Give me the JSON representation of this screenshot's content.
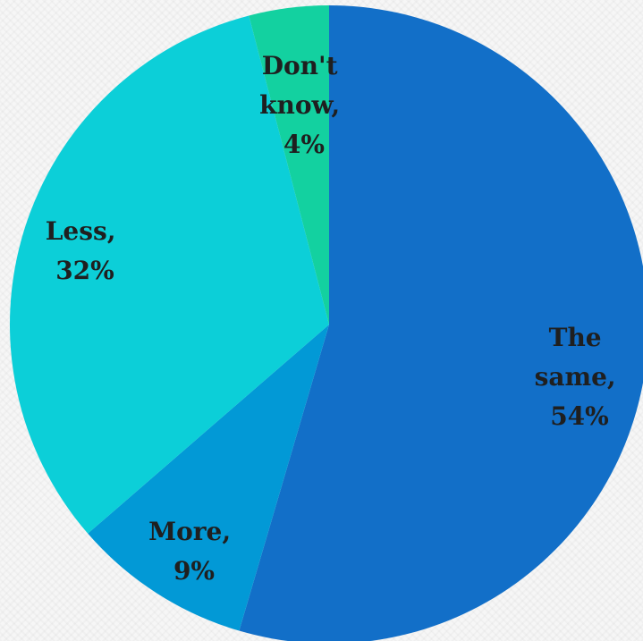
{
  "chart_data": {
    "type": "pie",
    "start_angle_deg": 0,
    "direction": "clockwise",
    "slices": [
      {
        "label_lines": [
          "The",
          "same,",
          "54%"
        ],
        "value": 54,
        "color": "#126fc8"
      },
      {
        "label_lines": [
          "More,",
          "9%"
        ],
        "value": 9,
        "color": "#0299d6"
      },
      {
        "label_lines": [
          "Less,",
          "32%"
        ],
        "value": 32,
        "color": "#0ccfd8"
      },
      {
        "label_lines": [
          "Don't",
          "know,",
          "4%"
        ],
        "value": 4,
        "color": "#13d1a0"
      }
    ]
  }
}
